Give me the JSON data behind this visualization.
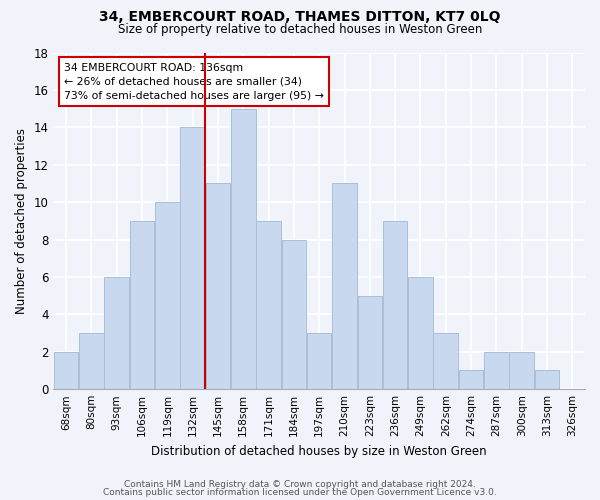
{
  "title": "34, EMBERCOURT ROAD, THAMES DITTON, KT7 0LQ",
  "subtitle": "Size of property relative to detached houses in Weston Green",
  "xlabel": "Distribution of detached houses by size in Weston Green",
  "ylabel": "Number of detached properties",
  "bin_labels": [
    "68sqm",
    "80sqm",
    "93sqm",
    "106sqm",
    "119sqm",
    "132sqm",
    "145sqm",
    "158sqm",
    "171sqm",
    "184sqm",
    "197sqm",
    "210sqm",
    "223sqm",
    "236sqm",
    "249sqm",
    "262sqm",
    "274sqm",
    "287sqm",
    "300sqm",
    "313sqm",
    "326sqm"
  ],
  "bar_values": [
    2,
    3,
    6,
    9,
    10,
    14,
    11,
    15,
    9,
    8,
    3,
    11,
    5,
    9,
    6,
    3,
    1,
    2,
    2,
    1,
    0
  ],
  "bar_color": "#c8d8ee",
  "bar_edge_color": "#aabfd8",
  "vline_x_index": 5,
  "vline_color": "#cc0000",
  "annotation_line1": "34 EMBERCOURT ROAD: 136sqm",
  "annotation_line2": "← 26% of detached houses are smaller (34)",
  "annotation_line3": "73% of semi-detached houses are larger (95) →",
  "annotation_box_edge": "#cc0000",
  "ylim": [
    0,
    18
  ],
  "yticks": [
    0,
    2,
    4,
    6,
    8,
    10,
    12,
    14,
    16,
    18
  ],
  "footer1": "Contains HM Land Registry data © Crown copyright and database right 2024.",
  "footer2": "Contains public sector information licensed under the Open Government Licence v3.0.",
  "background_color": "#f0f4fa",
  "grid_color": "#ffffff"
}
